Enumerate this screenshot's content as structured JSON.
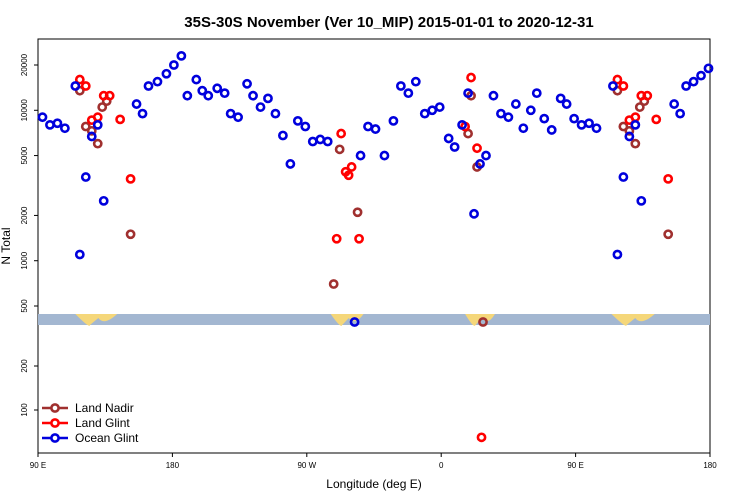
{
  "chart_data": {
    "type": "scatter",
    "title": "35S-30S November (Ver 10_MIP)   2015-01-01 to 2020-12-31",
    "xlabel": "Longitude (deg E)",
    "ylabel": "N Total",
    "x_ticks": [
      {
        "value": 90,
        "label": "90 E"
      },
      {
        "value": 180,
        "label": "180"
      },
      {
        "value": 270,
        "label": "90 W"
      },
      {
        "value": 360,
        "label": "0"
      },
      {
        "value": 450,
        "label": "90 E"
      },
      {
        "value": 540,
        "label": "180"
      }
    ],
    "xlim": [
      90,
      540
    ],
    "y_upper_ticks": [
      500,
      1000,
      2000,
      5000,
      10000,
      20000
    ],
    "y_lower_ticks": [
      100,
      200
    ],
    "y_scale": "log",
    "legend_position": "bottom-left",
    "colors": {
      "land_nadir": "#a0302f",
      "land_glint": "#ff0000",
      "ocean_glint": "#0000dd",
      "band_blue": "#a3b7d1",
      "band_land": "#f5d77a"
    },
    "series": [
      {
        "name": "Land Nadir",
        "color": "#a0302f",
        "points": [
          [
            118,
            13500
          ],
          [
            122,
            7800
          ],
          [
            126,
            7300
          ],
          [
            130,
            6000
          ],
          [
            133,
            10500
          ],
          [
            136,
            11500
          ],
          [
            152,
            1500
          ],
          [
            288,
            700
          ],
          [
            292,
            5500
          ],
          [
            304,
            2100
          ],
          [
            378,
            7000
          ],
          [
            380,
            12500
          ],
          [
            384,
            4200
          ],
          [
            388,
            400
          ],
          [
            478,
            13500
          ],
          [
            482,
            7800
          ],
          [
            486,
            7300
          ],
          [
            490,
            6000
          ],
          [
            493,
            10500
          ],
          [
            496,
            11500
          ],
          [
            512,
            1500
          ]
        ]
      },
      {
        "name": "Land Glint",
        "color": "#ff0000",
        "points": [
          [
            118,
            16000
          ],
          [
            122,
            14500
          ],
          [
            126,
            8600
          ],
          [
            130,
            9000
          ],
          [
            134,
            12500
          ],
          [
            138,
            12500
          ],
          [
            145,
            8700
          ],
          [
            152,
            3500
          ],
          [
            290,
            1400
          ],
          [
            293,
            7000
          ],
          [
            296,
            3900
          ],
          [
            298,
            3700
          ],
          [
            300,
            4200
          ],
          [
            305,
            1400
          ],
          [
            376,
            7800
          ],
          [
            380,
            16500
          ],
          [
            384,
            5600
          ],
          [
            387,
            65
          ],
          [
            478,
            16000
          ],
          [
            482,
            14500
          ],
          [
            486,
            8600
          ],
          [
            490,
            9000
          ],
          [
            494,
            12500
          ],
          [
            498,
            12500
          ],
          [
            504,
            8700
          ],
          [
            512,
            3500
          ]
        ]
      },
      {
        "name": "Ocean Glint",
        "color": "#0000dd",
        "points": [
          [
            93,
            9000
          ],
          [
            98,
            8000
          ],
          [
            103,
            8200
          ],
          [
            108,
            7600
          ],
          [
            115,
            14500
          ],
          [
            118,
            1100
          ],
          [
            122,
            3600
          ],
          [
            126,
            6700
          ],
          [
            130,
            8000
          ],
          [
            134,
            2500
          ],
          [
            156,
            11000
          ],
          [
            160,
            9500
          ],
          [
            164,
            14500
          ],
          [
            170,
            15500
          ],
          [
            176,
            17500
          ],
          [
            181,
            20000
          ],
          [
            186,
            23000
          ],
          [
            190,
            12500
          ],
          [
            196,
            16000
          ],
          [
            200,
            13500
          ],
          [
            204,
            12500
          ],
          [
            210,
            14000
          ],
          [
            215,
            13000
          ],
          [
            219,
            9500
          ],
          [
            224,
            9000
          ],
          [
            230,
            15000
          ],
          [
            234,
            12500
          ],
          [
            239,
            10500
          ],
          [
            244,
            12000
          ],
          [
            249,
            9500
          ],
          [
            254,
            6800
          ],
          [
            259,
            4400
          ],
          [
            264,
            8500
          ],
          [
            269,
            7800
          ],
          [
            274,
            6200
          ],
          [
            279,
            6400
          ],
          [
            284,
            6200
          ],
          [
            302,
            400
          ],
          [
            306,
            5000
          ],
          [
            311,
            7800
          ],
          [
            316,
            7500
          ],
          [
            322,
            5000
          ],
          [
            328,
            8500
          ],
          [
            333,
            14500
          ],
          [
            338,
            13000
          ],
          [
            343,
            15500
          ],
          [
            349,
            9500
          ],
          [
            354,
            10000
          ],
          [
            359,
            10500
          ],
          [
            365,
            6500
          ],
          [
            369,
            5700
          ],
          [
            374,
            8000
          ],
          [
            378,
            13000
          ],
          [
            382,
            2050
          ],
          [
            386,
            4400
          ],
          [
            390,
            5000
          ],
          [
            395,
            12500
          ],
          [
            400,
            9500
          ],
          [
            405,
            9000
          ],
          [
            410,
            11000
          ],
          [
            415,
            7600
          ],
          [
            420,
            10000
          ],
          [
            424,
            13000
          ],
          [
            429,
            8800
          ],
          [
            434,
            7400
          ],
          [
            440,
            12000
          ],
          [
            444,
            11000
          ],
          [
            449,
            8800
          ],
          [
            454,
            8000
          ],
          [
            459,
            8200
          ],
          [
            464,
            7600
          ],
          [
            475,
            14500
          ],
          [
            478,
            1100
          ],
          [
            482,
            3600
          ],
          [
            486,
            6700
          ],
          [
            490,
            8000
          ],
          [
            494,
            2500
          ],
          [
            516,
            11000
          ],
          [
            520,
            9500
          ],
          [
            524,
            14500
          ],
          [
            529,
            15500
          ],
          [
            534,
            17000
          ],
          [
            539,
            19000
          ]
        ]
      }
    ]
  }
}
